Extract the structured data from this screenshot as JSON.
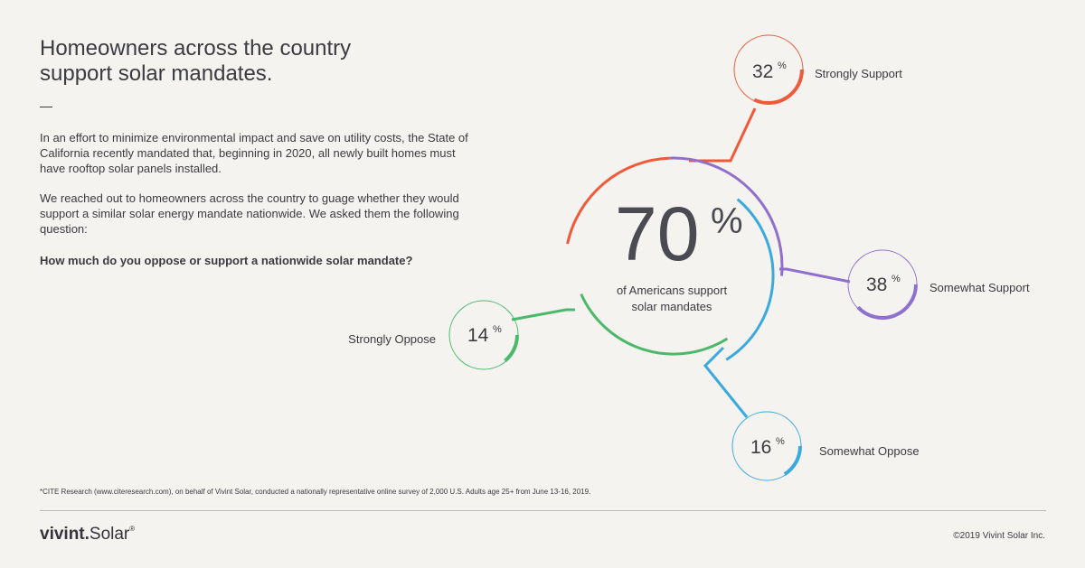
{
  "header": {
    "title": "Homeowners across the country support solar mandates.",
    "dash": "—"
  },
  "intro": {
    "paragraph1": "In an effort to minimize environmental impact and save on utility costs, the State of California recently mandated that, beginning in 2020, all newly built homes must have rooftop solar panels installed.",
    "paragraph2": "We reached out to homeowners across the country to guage whether they would support a similar solar energy mandate nationwide. We asked them the following question:",
    "question": "How much do you oppose or support a nationwide solar mandate?"
  },
  "chart_data": {
    "type": "pie",
    "title": "",
    "center": {
      "value": 70,
      "unit": "%",
      "label_line1": "of Americans support",
      "label_line2": "solar mandates"
    },
    "series": [
      {
        "name": "Strongly Support",
        "value": 32,
        "unit": "%",
        "color": "#f05a38"
      },
      {
        "name": "Somewhat Support",
        "value": 38,
        "unit": "%",
        "color": "#9070cc"
      },
      {
        "name": "Somewhat Oppose",
        "value": 16,
        "unit": "%",
        "color": "#3aa9e0"
      },
      {
        "name": "Strongly Oppose",
        "value": 14,
        "unit": "%",
        "color": "#4cb86a"
      }
    ]
  },
  "footnote": "*CITE Research (www.citeresearch.com), on behalf of Vivint Solar, conducted a nationally representative online survey of 2,000 U.S. Adults age 25+ from June 13-16, 2019.",
  "footer": {
    "logo_part1": "vivint.",
    "logo_part2": "Solar",
    "logo_mark": "®",
    "copyright": "©2019 Vivint Solar Inc."
  }
}
